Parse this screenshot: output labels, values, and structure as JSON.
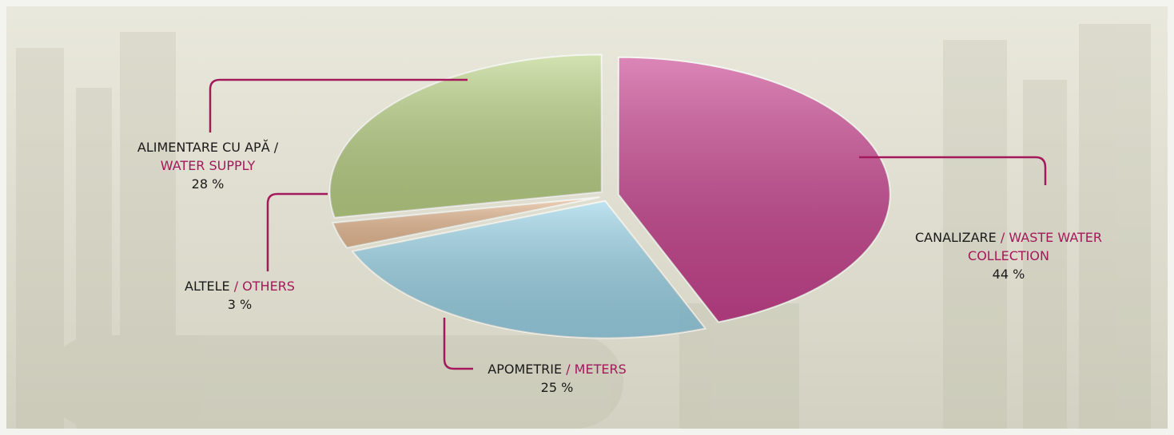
{
  "chart_data": {
    "type": "pie",
    "categories": [
      "CANALIZARE",
      "APOMETRIE",
      "ALTELE",
      "ALIMENTARE CU APĂ /"
    ],
    "translations": [
      "/ WASTE WATER COLLECTION",
      "/ METERS",
      "/ OTHERS",
      "WATER SUPPLY"
    ],
    "values": [
      44,
      25,
      3,
      28
    ],
    "value_labels": [
      "44 %",
      "25 %",
      "3 %",
      "28 %"
    ],
    "colors": [
      "#c52f86",
      "#93d3ea",
      "#ebb88e",
      "#b6d07c"
    ],
    "label_color": "#a3195b"
  }
}
